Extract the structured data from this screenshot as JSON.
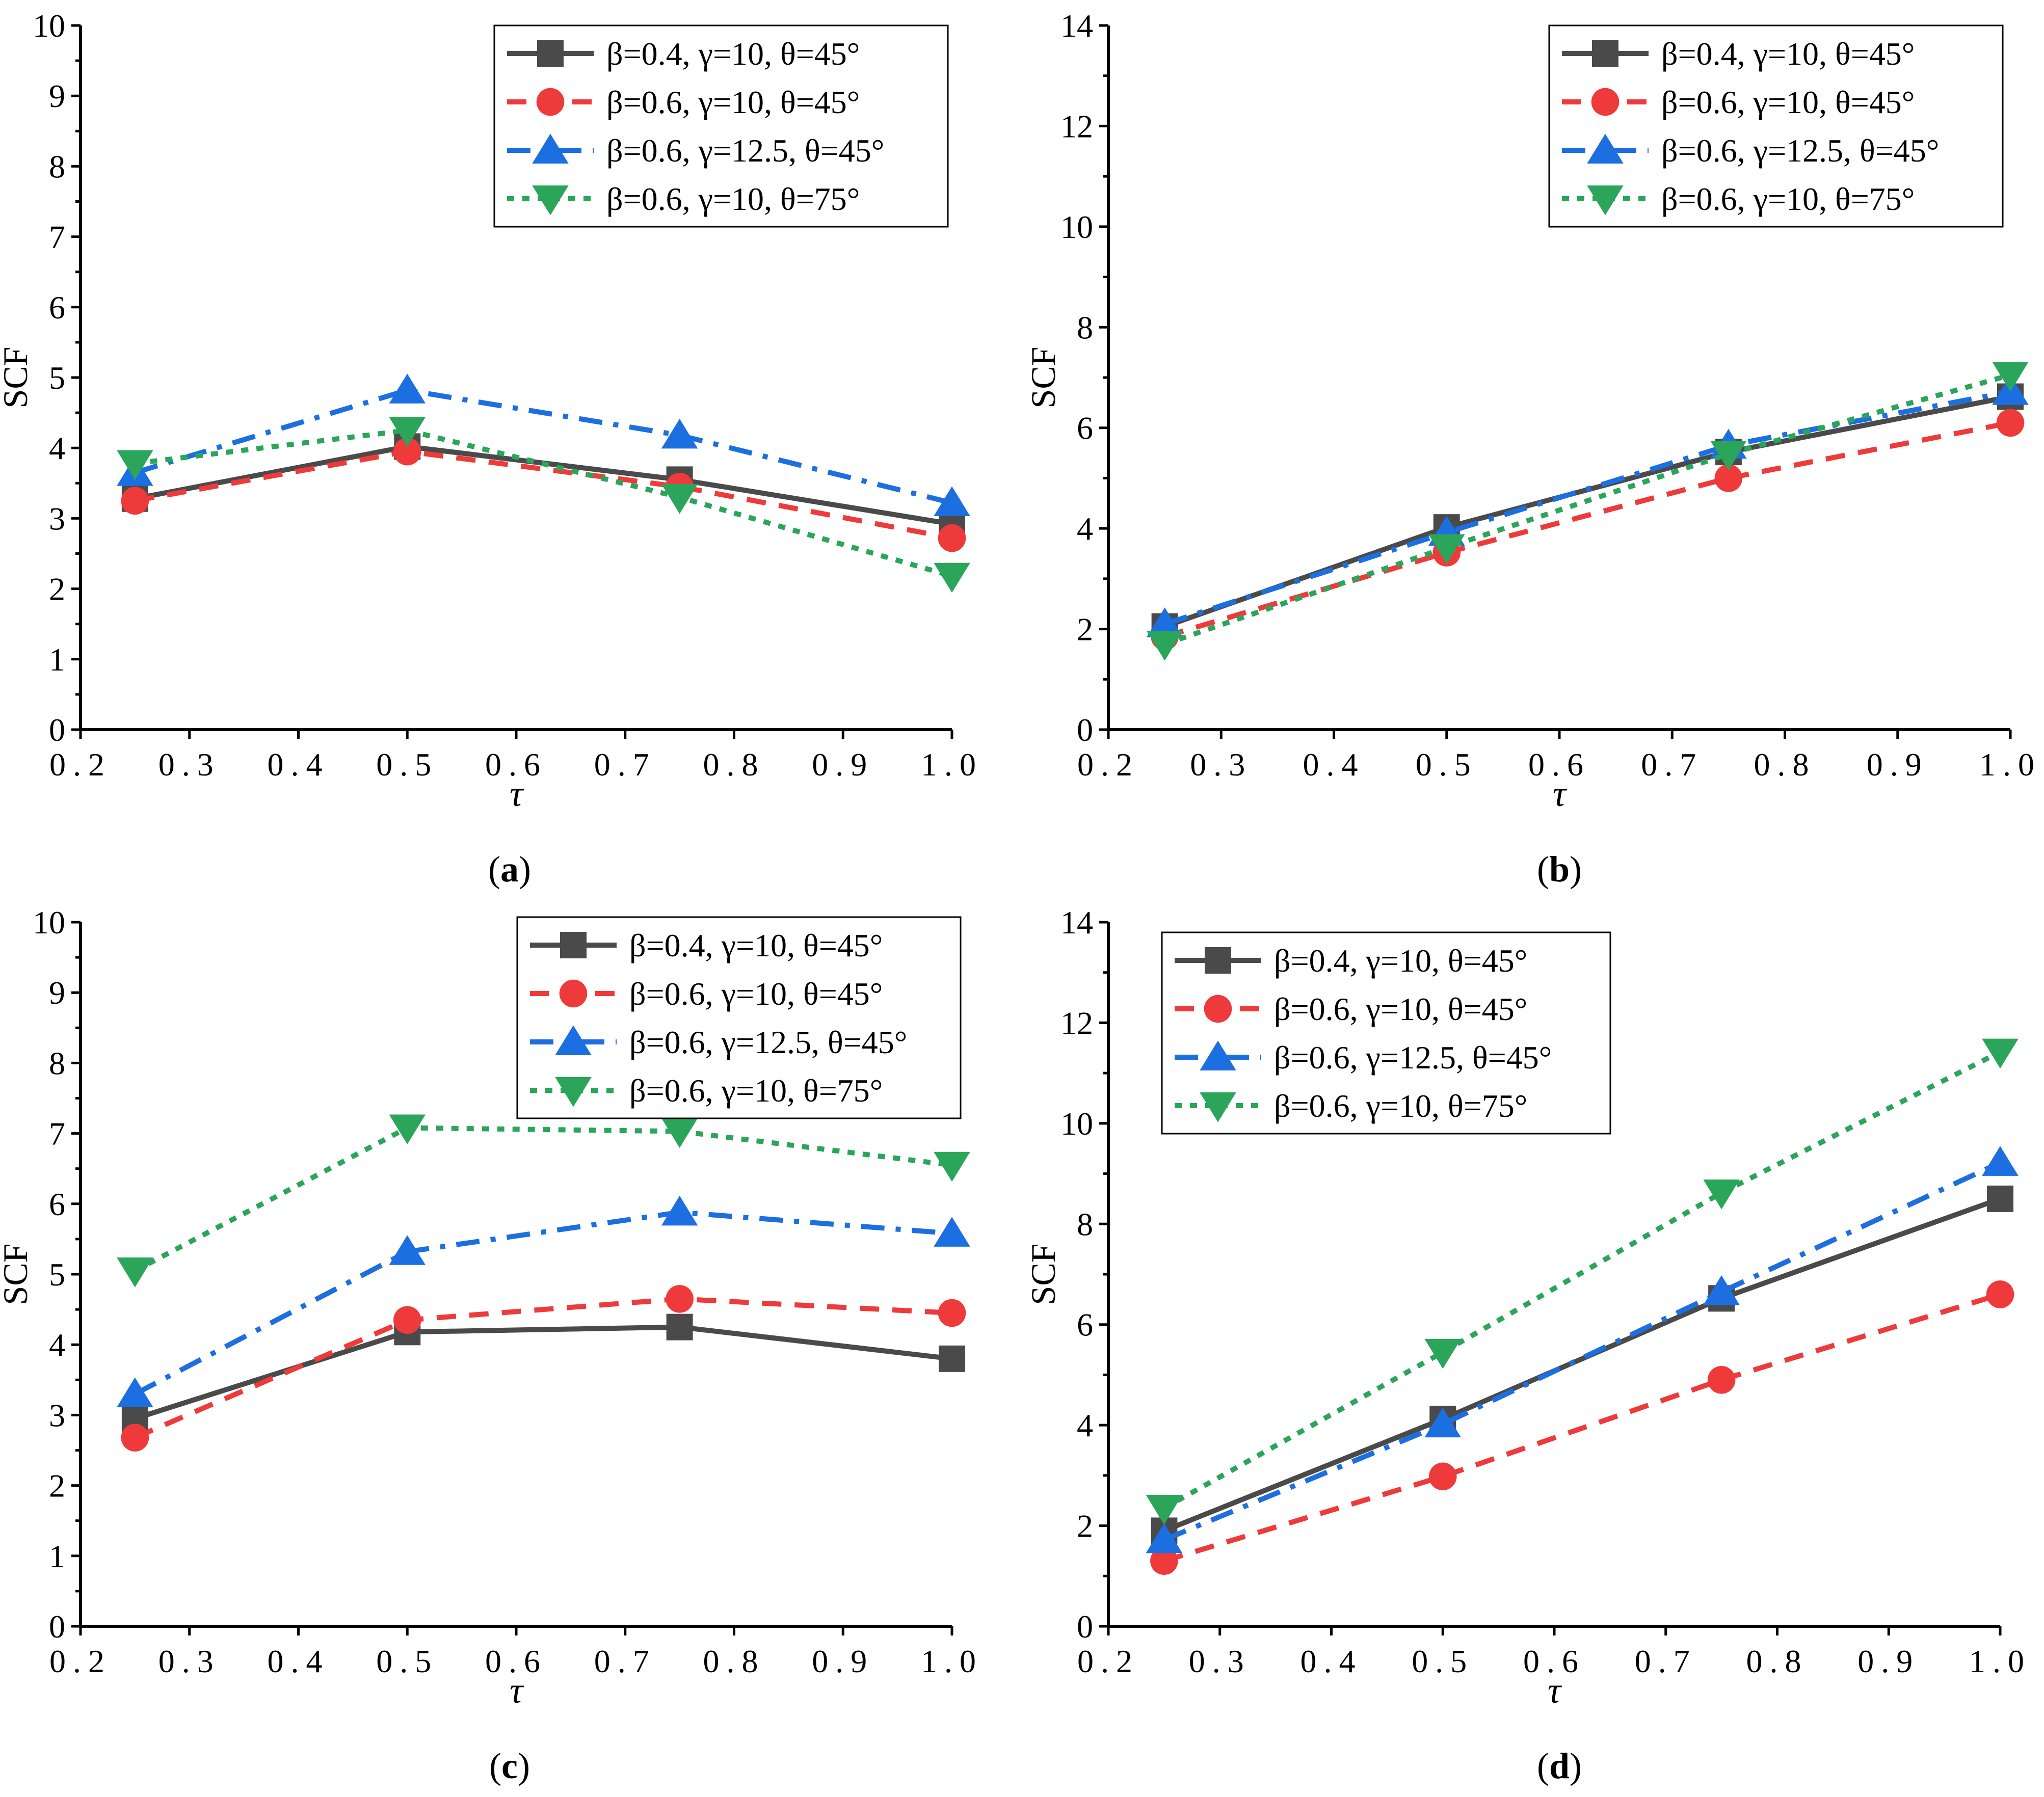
{
  "chart_data": [
    {
      "type": "line",
      "panel": "a",
      "caption_letter": "a",
      "xlabel": "τ",
      "ylabel": "SCF",
      "xlim": [
        0.2,
        1.0
      ],
      "ylim": [
        0,
        10
      ],
      "x_ticks": [
        "0.2",
        "0.3",
        "0.4",
        "0.5",
        "0.6",
        "0.7",
        "0.8",
        "0.9",
        "1.0"
      ],
      "y_ticks": [
        "0",
        "1",
        "2",
        "3",
        "4",
        "5",
        "6",
        "7",
        "8",
        "9",
        "10"
      ],
      "legend_position": "top-right",
      "x": [
        0.25,
        0.5,
        0.75,
        1.0
      ],
      "series": [
        {
          "name": "β=0.4, γ=10, θ=45°",
          "values": [
            3.28,
            4.02,
            3.55,
            2.92
          ]
        },
        {
          "name": "β=0.6, γ=10, θ=45°",
          "values": [
            3.25,
            3.95,
            3.45,
            2.72
          ]
        },
        {
          "name": "β=0.6, γ=12.5, θ=45°",
          "values": [
            3.65,
            4.82,
            4.18,
            3.22
          ]
        },
        {
          "name": "β=0.6, γ=10, θ=75°",
          "values": [
            3.78,
            4.25,
            3.3,
            2.18
          ]
        }
      ]
    },
    {
      "type": "line",
      "panel": "b",
      "caption_letter": "b",
      "xlabel": "τ",
      "ylabel": "SCF",
      "xlim": [
        0.2,
        1.0
      ],
      "ylim": [
        0,
        14
      ],
      "x_ticks": [
        "0.2",
        "0.3",
        "0.4",
        "0.5",
        "0.6",
        "0.7",
        "0.8",
        "0.9",
        "1.0"
      ],
      "y_ticks": [
        "0",
        "2",
        "4",
        "6",
        "8",
        "10",
        "12",
        "14"
      ],
      "legend_position": "top-right",
      "x": [
        0.25,
        0.5,
        0.75,
        1.0
      ],
      "series": [
        {
          "name": "β=0.4, γ=10, θ=45°",
          "values": [
            2.05,
            4.02,
            5.52,
            6.62
          ]
        },
        {
          "name": "β=0.6, γ=10, θ=45°",
          "values": [
            1.85,
            3.52,
            5.0,
            6.1
          ]
        },
        {
          "name": "β=0.6, γ=12.5, θ=45°",
          "values": [
            2.1,
            3.92,
            5.65,
            6.72
          ]
        },
        {
          "name": "β=0.6, γ=10, θ=75°",
          "values": [
            1.7,
            3.62,
            5.48,
            7.05
          ]
        }
      ]
    },
    {
      "type": "line",
      "panel": "c",
      "caption_letter": "c",
      "xlabel": "τ",
      "ylabel": "SCF",
      "xlim": [
        0.2,
        1.0
      ],
      "ylim": [
        0,
        10
      ],
      "x_ticks": [
        "0.2",
        "0.3",
        "0.4",
        "0.5",
        "0.6",
        "0.7",
        "0.8",
        "0.9",
        "1.0"
      ],
      "y_ticks": [
        "0",
        "1",
        "2",
        "3",
        "4",
        "5",
        "6",
        "7",
        "8",
        "9",
        "10"
      ],
      "legend_position": "top-right",
      "x": [
        0.25,
        0.5,
        0.75,
        1.0
      ],
      "series": [
        {
          "name": "β=0.4, γ=10, θ=45°",
          "values": [
            2.95,
            4.18,
            4.25,
            3.8
          ]
        },
        {
          "name": "β=0.6, γ=10, θ=45°",
          "values": [
            2.68,
            4.35,
            4.65,
            4.45
          ]
        },
        {
          "name": "β=0.6, γ=12.5, θ=45°",
          "values": [
            3.3,
            5.32,
            5.88,
            5.58
          ]
        },
        {
          "name": "β=0.6, γ=10, θ=75°",
          "values": [
            5.05,
            7.08,
            7.03,
            6.55
          ]
        }
      ]
    },
    {
      "type": "line",
      "panel": "d",
      "caption_letter": "d",
      "xlabel": "τ",
      "ylabel": "SCF",
      "xlim": [
        0.2,
        1.0
      ],
      "ylim": [
        0,
        14
      ],
      "x_ticks": [
        "0.2",
        "0.3",
        "0.4",
        "0.5",
        "0.6",
        "0.7",
        "0.8",
        "0.9",
        "1.0"
      ],
      "y_ticks": [
        "0",
        "2",
        "4",
        "6",
        "8",
        "10",
        "12",
        "14"
      ],
      "legend_position": "top-left",
      "x": [
        0.25,
        0.5,
        0.75,
        1.0
      ],
      "series": [
        {
          "name": "β=0.4, γ=10, θ=45°",
          "values": [
            1.9,
            4.12,
            6.52,
            8.5
          ]
        },
        {
          "name": "β=0.6, γ=10, θ=45°",
          "values": [
            1.3,
            2.98,
            4.9,
            6.6
          ]
        },
        {
          "name": "β=0.6, γ=12.5, θ=45°",
          "values": [
            1.72,
            4.02,
            6.65,
            9.22
          ]
        },
        {
          "name": "β=0.6, γ=10, θ=75°",
          "values": [
            2.35,
            5.45,
            8.62,
            11.42
          ]
        }
      ]
    }
  ],
  "series_styles": [
    {
      "color": "#4a4a4a",
      "marker": "square",
      "dash": "solid"
    },
    {
      "color": "#ee3a3a",
      "marker": "circle",
      "dash": "dash"
    },
    {
      "color": "#1c6fe0",
      "marker": "triangle-up",
      "dash": "dashdot"
    },
    {
      "color": "#2aa55a",
      "marker": "triangle-down",
      "dash": "dot"
    }
  ]
}
